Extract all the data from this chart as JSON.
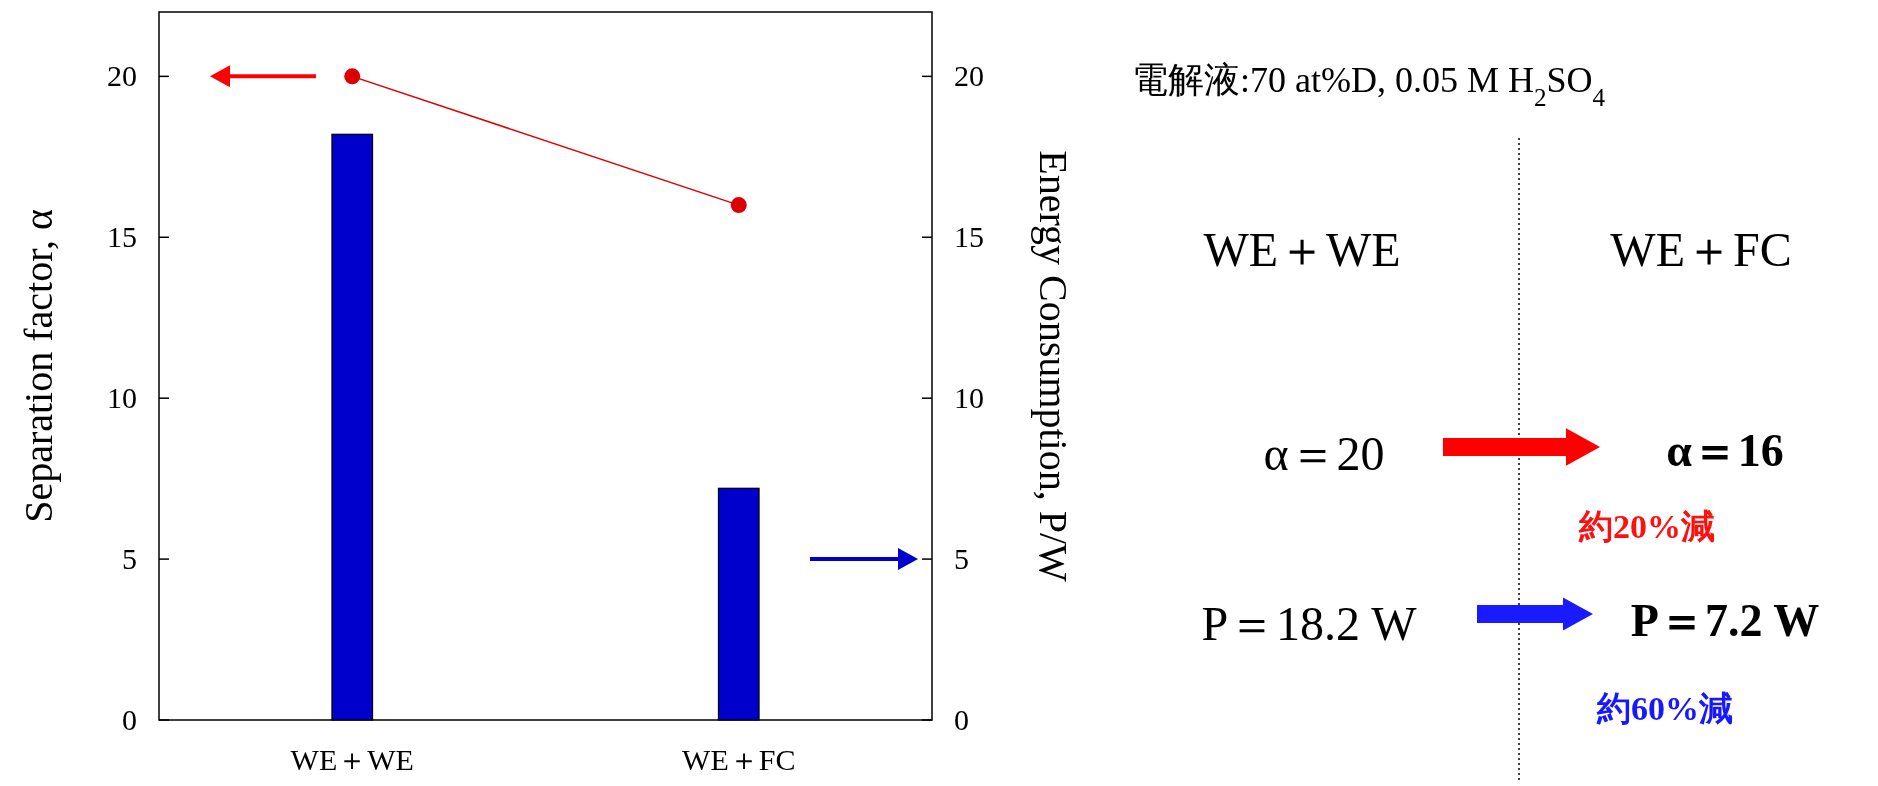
{
  "chart_data": {
    "type": "bar",
    "categories": [
      "WE＋WE",
      "WE＋FC"
    ],
    "ylabel": "Separation factor, α",
    "y2label": "Energy Consumption, P/W",
    "ylim": [
      0,
      22
    ],
    "yticks": [
      0,
      5,
      10,
      15,
      20
    ],
    "y2lim": [
      0,
      22
    ],
    "y2ticks": [
      0,
      5,
      10,
      15,
      20
    ],
    "marker": "circle",
    "series": [
      {
        "type": "line",
        "color": "#dd0000",
        "values": [
          20,
          16
        ]
      },
      {
        "color": "#0000cc",
        "values": [
          18.2,
          7.2
        ],
        "axis": "y2"
      }
    ],
    "annotations": [
      "電解液:70 at%D, 0.05 M H$_{2}$SO$_{4}$",
      "WE＋WE",
      "WE＋FC",
      "α＝20",
      "α＝16",
      "約20%減",
      "P＝18.2 W",
      "P＝7.2 W",
      "約60%減"
    ]
  }
}
